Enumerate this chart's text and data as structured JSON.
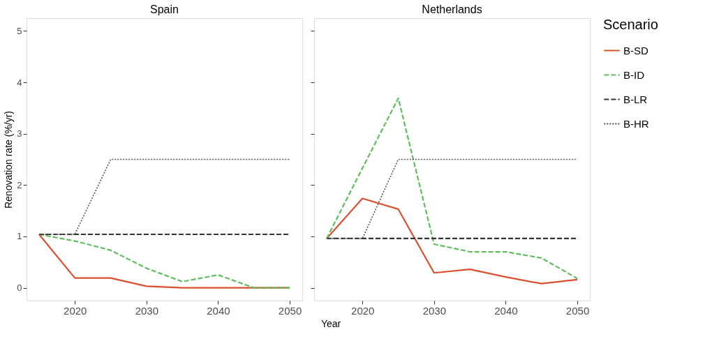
{
  "chart_data": [
    {
      "type": "line",
      "title": "Spain",
      "legend_title": "Scenario",
      "legend": "right",
      "ylabel": "Renovation rate (%/yr)",
      "xlabel": "Year",
      "x": [
        2015,
        2020,
        2025,
        2030,
        2035,
        2040,
        2045,
        2050
      ],
      "xlim": [
        2013.25,
        2051.75
      ],
      "xticks": [
        2020,
        2030,
        2040,
        2050
      ],
      "ylim": [
        -0.25,
        5.25
      ],
      "yticks": [
        0,
        1,
        2,
        3,
        4,
        5
      ],
      "grid": false,
      "series": [
        {
          "name": "B-SD",
          "color": "#d9502f",
          "line_style": "solid",
          "values": [
            1.04,
            0.19,
            0.19,
            0.03,
            0,
            0,
            0,
            0
          ]
        },
        {
          "name": "B-ID",
          "color": "#5cbf5c",
          "line_style": "dashed",
          "values": [
            1.04,
            0.91,
            0.73,
            0.38,
            0.12,
            0.25,
            0,
            0
          ]
        },
        {
          "name": "B-LR",
          "color": "#333333",
          "line_style": "dashed",
          "values": [
            1.04,
            1.04,
            1.04,
            1.04,
            1.04,
            1.04,
            1.04,
            1.04
          ]
        },
        {
          "name": "B-HR",
          "color": "#555555",
          "line_style": "dotted",
          "values": [
            1.04,
            1.04,
            2.5,
            2.5,
            2.5,
            2.5,
            2.5,
            2.5
          ]
        }
      ]
    },
    {
      "type": "line",
      "title": "Netherlands",
      "tick_labels": "x",
      "x": [
        2015,
        2020,
        2025,
        2030,
        2035,
        2040,
        2045,
        2050
      ],
      "xlim": [
        2013.25,
        2051.75
      ],
      "xticks": [
        2020,
        2030,
        2040,
        2050
      ],
      "ylim": [
        -0.25,
        5.25
      ],
      "yticks": [
        0,
        1,
        2,
        3,
        4,
        5
      ],
      "grid": false,
      "series": [
        {
          "name": "B-SD",
          "color": "#d9502f",
          "line_style": "solid",
          "values": [
            0.96,
            1.74,
            1.53,
            0.29,
            0.36,
            0.21,
            0.08,
            0.16
          ]
        },
        {
          "name": "B-ID",
          "color": "#5cbf5c",
          "line_style": "dashed",
          "values": [
            0.96,
            2.33,
            3.69,
            0.85,
            0.7,
            0.7,
            0.58,
            0.18
          ]
        },
        {
          "name": "B-LR",
          "color": "#333333",
          "line_style": "dashed",
          "values": [
            0.96,
            0.96,
            0.96,
            0.96,
            0.96,
            0.96,
            0.96,
            0.96
          ]
        },
        {
          "name": "B-HR",
          "color": "#555555",
          "line_style": "dotted",
          "values": [
            0.96,
            0.96,
            2.5,
            2.5,
            2.5,
            2.5,
            2.5,
            2.5
          ]
        }
      ]
    }
  ]
}
